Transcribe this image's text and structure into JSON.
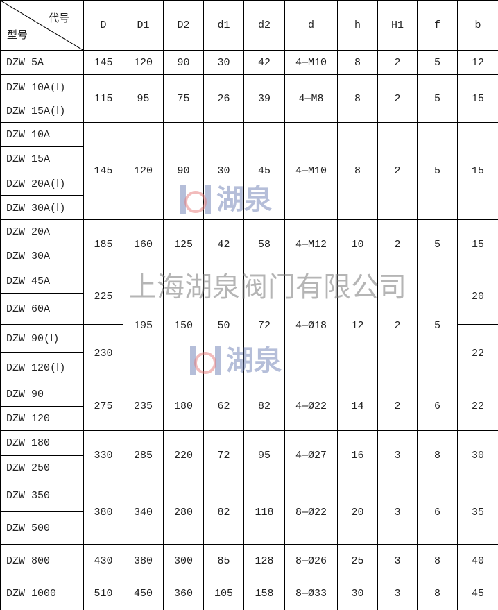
{
  "header": {
    "corner_top": "代号",
    "corner_bottom": "型号",
    "columns": [
      "D",
      "D1",
      "D2",
      "d1",
      "d2",
      "d",
      "h",
      "H1",
      "f",
      "b"
    ]
  },
  "groups": [
    {
      "models": [
        "DZW 5A"
      ],
      "values": [
        "145",
        "120",
        "90",
        "30",
        "42",
        "4—M10",
        "8",
        "2",
        "5",
        "12"
      ]
    },
    {
      "models": [
        "DZW 10A(Ⅰ)",
        "DZW 15A(Ⅰ)"
      ],
      "values": [
        "115",
        "95",
        "75",
        "26",
        "39",
        "4—M8",
        "8",
        "2",
        "5",
        "15"
      ]
    },
    {
      "models": [
        "DZW 10A",
        "DZW 15A",
        "DZW 20A(Ⅰ)",
        "DZW 30A(Ⅰ)"
      ],
      "values": [
        "145",
        "120",
        "90",
        "30",
        "45",
        "4—M10",
        "8",
        "2",
        "5",
        "15"
      ]
    },
    {
      "models": [
        "DZW 20A",
        "DZW 30A"
      ],
      "values": [
        "185",
        "160",
        "125",
        "42",
        "58",
        "4—M12",
        "10",
        "2",
        "5",
        "15"
      ]
    },
    {
      "models": [
        "DZW 45A",
        "DZW 60A",
        "DZW 90(Ⅰ)",
        "DZW 120(Ⅰ)"
      ],
      "values": [
        [
          "225",
          "230"
        ],
        "195",
        "150",
        "50",
        "72",
        "4—Ø18",
        "12",
        "2",
        "5",
        [
          "20",
          "22"
        ]
      ]
    },
    {
      "models": [
        "DZW 90",
        "DZW 120"
      ],
      "values": [
        "275",
        "235",
        "180",
        "62",
        "82",
        "4—Ø22",
        "14",
        "2",
        "6",
        "22"
      ]
    },
    {
      "models": [
        "DZW 180",
        "DZW 250"
      ],
      "values": [
        "330",
        "285",
        "220",
        "72",
        "95",
        "4—Ø27",
        "16",
        "3",
        "8",
        "30"
      ]
    },
    {
      "models": [
        "DZW 350",
        "DZW 500"
      ],
      "values": [
        "380",
        "340",
        "280",
        "82",
        "118",
        "8—Ø22",
        "20",
        "3",
        "6",
        "35"
      ]
    },
    {
      "models": [
        "DZW 800"
      ],
      "values": [
        "430",
        "380",
        "300",
        "85",
        "128",
        "8—Ø26",
        "25",
        "3",
        "8",
        "40"
      ]
    },
    {
      "models": [
        "DZW 1000"
      ],
      "values": [
        "510",
        "450",
        "360",
        "105",
        "158",
        "8—Ø33",
        "30",
        "3",
        "8",
        "45"
      ]
    }
  ],
  "watermark": {
    "company": "上海湖泉阀门有限公司",
    "logo_text": "湖泉",
    "logo_color": "#5a6eaa"
  }
}
